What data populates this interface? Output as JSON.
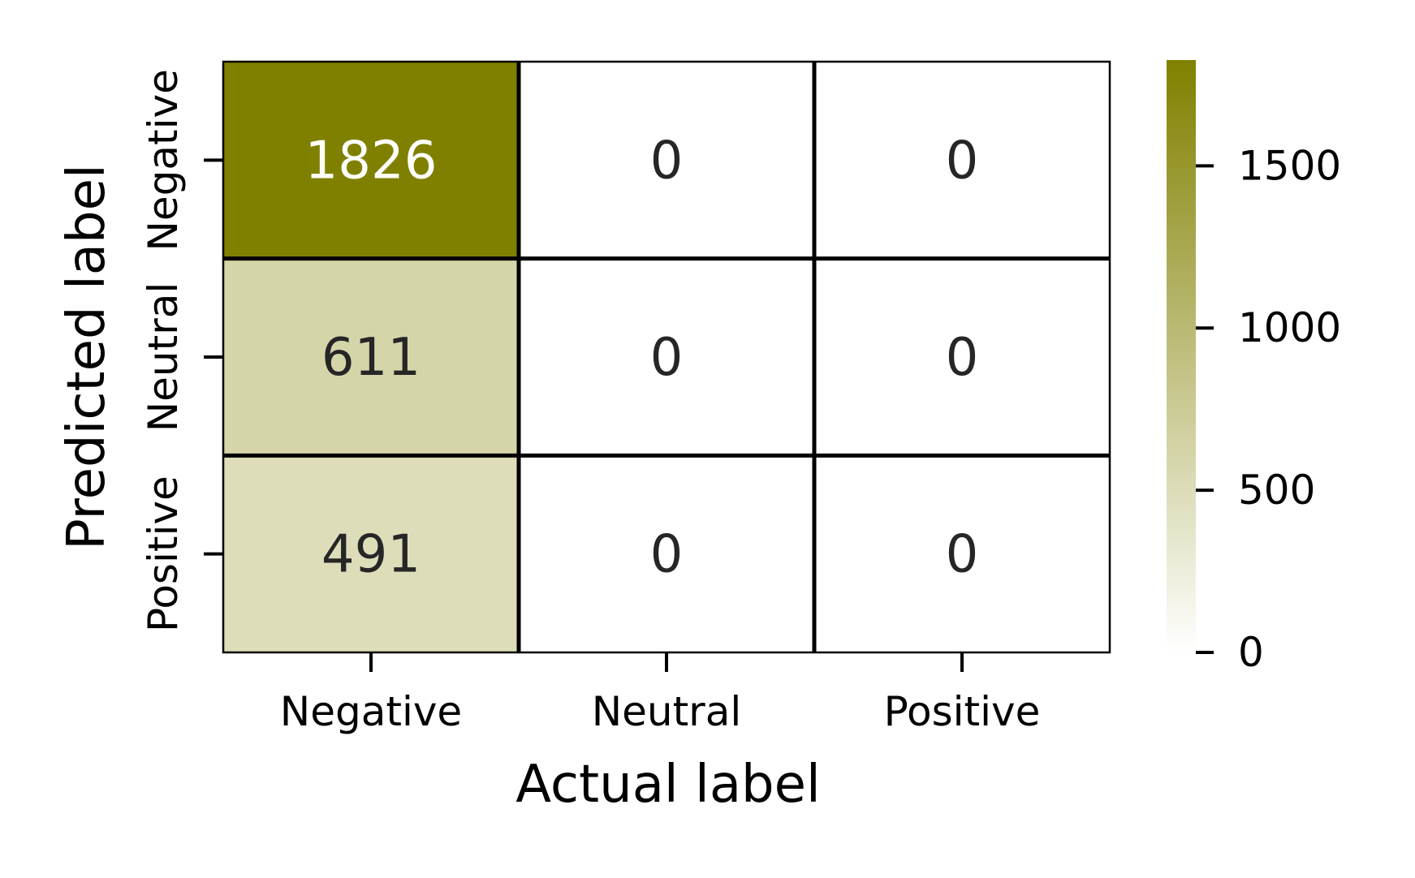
{
  "chart_data": {
    "type": "heatmap",
    "xlabel": "Actual label",
    "ylabel": "Predicted label",
    "x_categories": [
      "Negative",
      "Neutral",
      "Positive"
    ],
    "y_categories": [
      "Negative",
      "Neutral",
      "Positive"
    ],
    "values": [
      [
        1826,
        0,
        0
      ],
      [
        611,
        0,
        0
      ],
      [
        491,
        0,
        0
      ]
    ],
    "colormap": {
      "low": "#ffffff",
      "high": "#808000"
    },
    "vmin": 0,
    "vmax": 1826,
    "colorbar_ticks": [
      0,
      500,
      1000,
      1500
    ],
    "annotation_colors": {
      "light": "#ffffff",
      "dark": "#262626"
    }
  }
}
